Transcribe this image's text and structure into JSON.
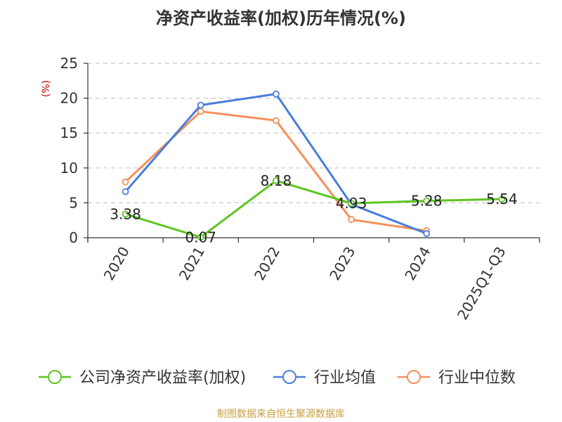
{
  "chart_data": {
    "type": "line",
    "title": "净资产收益率(加权)历年情况(%)",
    "ylabel": "(%)",
    "xlabel": "",
    "categories": [
      "2020",
      "2021",
      "2022",
      "2023",
      "2024",
      "2025Q1-Q3"
    ],
    "ylim": [
      0,
      25
    ],
    "yticks": [
      "0",
      "5",
      "10",
      "15",
      "20",
      "25"
    ],
    "grid": true,
    "legend_position": "bottom",
    "series": [
      {
        "name": "公司净资产收益率(加权)",
        "color": "#5cc51f",
        "values": [
          3.38,
          0.07,
          8.18,
          4.93,
          5.28,
          5.54
        ],
        "labels": [
          "3.38",
          "0.07",
          "8.18",
          "4.93",
          "5.28",
          "5.54"
        ]
      },
      {
        "name": "行业均值",
        "color": "#4a7ddb",
        "values": [
          6.6,
          19.0,
          20.6,
          4.8,
          0.6,
          null
        ]
      },
      {
        "name": "行业中位数",
        "color": "#f5905a",
        "values": [
          8.0,
          18.1,
          16.8,
          2.6,
          1.0,
          null
        ]
      }
    ]
  },
  "footer": {
    "source": "制图数据来自恒生聚源数据库"
  }
}
